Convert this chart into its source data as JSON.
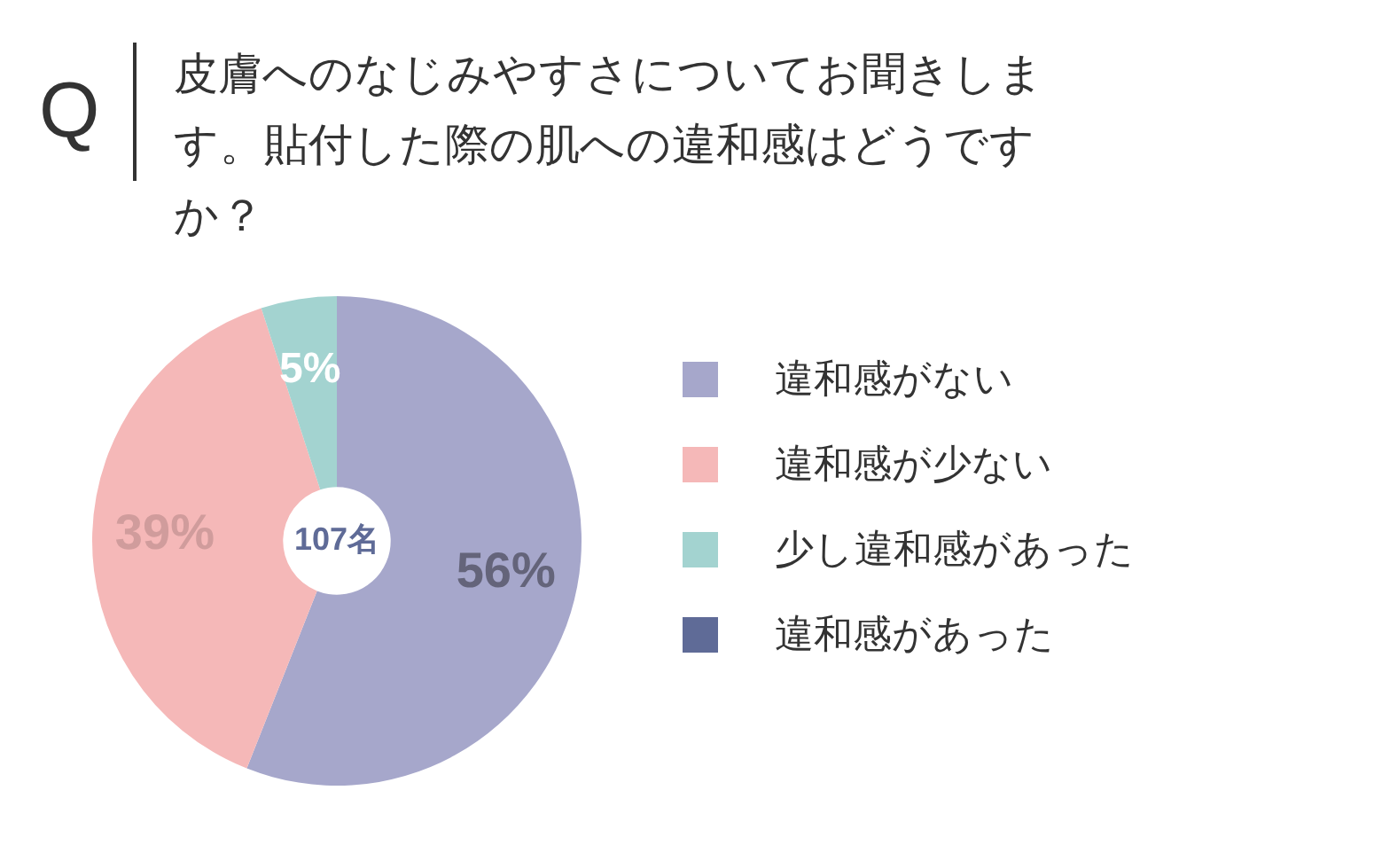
{
  "chart_data": {
    "type": "donut",
    "title": "皮膚へのなじみやすさについてお聞きします。貼付した際の肌への違和感はどうですか？",
    "categories": [
      "違和感がない",
      "違和感が少ない",
      "少し違和感があった",
      "違和感があった"
    ],
    "values": [
      56,
      39,
      5,
      0
    ],
    "colors": [
      "#a6a7cb",
      "#f5b8b8",
      "#a3d3d0",
      "#5f6b97"
    ],
    "value_labels": [
      "56%",
      "39%",
      "5%",
      null
    ],
    "legend": "right",
    "annotations": [
      "Q",
      "107名"
    ]
  }
}
